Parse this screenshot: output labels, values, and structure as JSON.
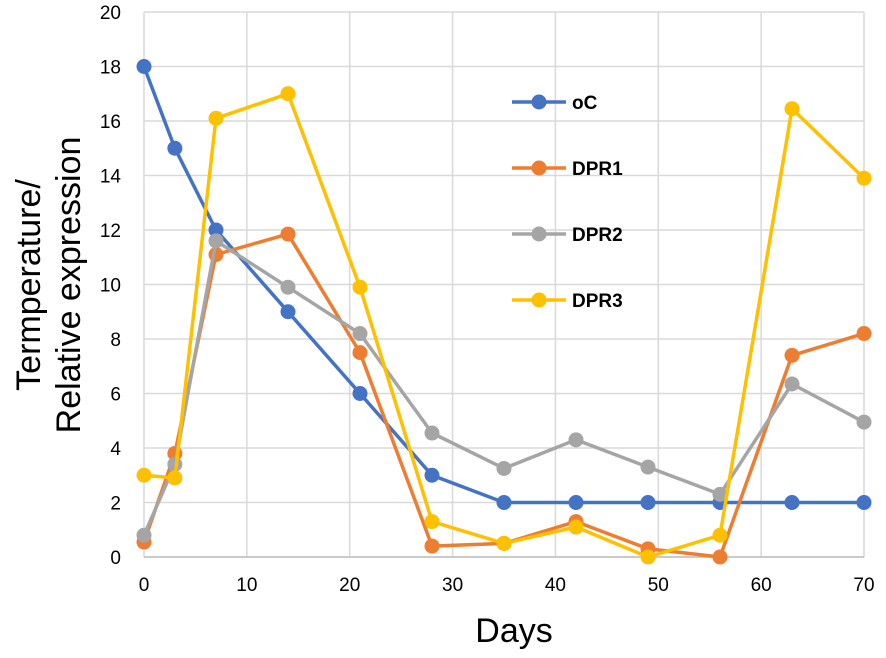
{
  "chart_data": {
    "type": "line",
    "title": "",
    "xlabel": "Days",
    "ylabel": [
      "Termperature/",
      "Relative expression"
    ],
    "xlim": [
      0,
      70
    ],
    "ylim": [
      0,
      20
    ],
    "xticks": [
      "0",
      "10",
      "20",
      "30",
      "40",
      "50",
      "60",
      "70"
    ],
    "yticks": [
      "0",
      "2",
      "4",
      "6",
      "8",
      "10",
      "12",
      "14",
      "16",
      "18",
      "20"
    ],
    "grid": true,
    "legend_position": "upper-center",
    "series": [
      {
        "name": "oC",
        "color": "#4472C4",
        "points": [
          [
            0,
            18
          ],
          [
            3,
            15
          ],
          [
            7,
            12
          ],
          [
            14,
            9
          ],
          [
            21,
            6
          ],
          [
            28,
            3
          ],
          [
            35,
            2
          ],
          [
            42,
            2
          ],
          [
            49,
            2
          ],
          [
            56,
            2
          ],
          [
            63,
            2
          ],
          [
            70,
            2
          ]
        ]
      },
      {
        "name": "DPR1",
        "color": "#ED7D31",
        "points": [
          [
            0,
            0.55
          ],
          [
            3,
            3.8
          ],
          [
            7,
            11.1
          ],
          [
            14,
            11.85
          ],
          [
            21,
            7.5
          ],
          [
            28,
            0.4
          ],
          [
            35,
            0.5
          ],
          [
            42,
            1.3
          ],
          [
            49,
            0.3
          ],
          [
            56,
            0.0
          ],
          [
            63,
            7.4
          ],
          [
            70,
            8.2
          ]
        ]
      },
      {
        "name": "DPR2",
        "color": "#A5A5A5",
        "points": [
          [
            0,
            0.8
          ],
          [
            3,
            3.4
          ],
          [
            7,
            11.6
          ],
          [
            14,
            9.9
          ],
          [
            21,
            8.2
          ],
          [
            28,
            4.55
          ],
          [
            35,
            3.25
          ],
          [
            42,
            4.3
          ],
          [
            49,
            3.3
          ],
          [
            56,
            2.3
          ],
          [
            63,
            6.35
          ],
          [
            70,
            4.95
          ]
        ]
      },
      {
        "name": "DPR3",
        "color": "#FFC000",
        "points": [
          [
            0,
            3.0
          ],
          [
            3,
            2.9
          ],
          [
            7,
            16.1
          ],
          [
            14,
            17.0
          ],
          [
            21,
            9.9
          ],
          [
            28,
            1.3
          ],
          [
            35,
            0.5
          ],
          [
            42,
            1.1
          ],
          [
            49,
            0.0
          ],
          [
            56,
            0.8
          ],
          [
            63,
            16.45
          ],
          [
            70,
            13.9
          ]
        ]
      }
    ]
  }
}
